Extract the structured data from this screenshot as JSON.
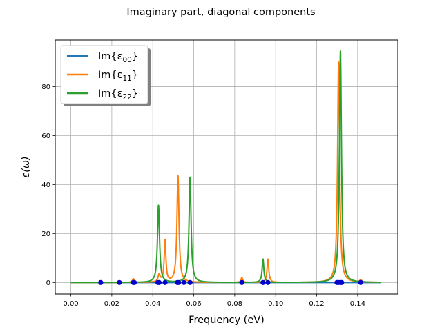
{
  "chart_data": {
    "type": "line",
    "title": "Imaginary part, diagonal components",
    "xlabel": "Frequency (eV)",
    "ylabel": "ε(ω)",
    "xlim": [
      -0.0076,
      0.1596
    ],
    "ylim": [
      -4.7,
      99
    ],
    "grid": true,
    "legend_position": "top-left",
    "x_ticks": [
      {
        "value": 0.0,
        "label": "0.00"
      },
      {
        "value": 0.02,
        "label": "0.02"
      },
      {
        "value": 0.04,
        "label": "0.04"
      },
      {
        "value": 0.06,
        "label": "0.06"
      },
      {
        "value": 0.08,
        "label": "0.08"
      },
      {
        "value": 0.1,
        "label": "0.10"
      },
      {
        "value": 0.12,
        "label": "0.12"
      },
      {
        "value": 0.14,
        "label": "0.14"
      }
    ],
    "y_ticks": [
      {
        "value": 0,
        "label": "0"
      },
      {
        "value": 20,
        "label": "20"
      },
      {
        "value": 40,
        "label": "40"
      },
      {
        "value": 60,
        "label": "60"
      },
      {
        "value": 80,
        "label": "80"
      }
    ],
    "x_range": [
      0,
      0.1512
    ],
    "series": [
      {
        "name": "Im{ε00}",
        "main": "Im{ε",
        "sub": "00",
        "close": "}",
        "color": "#1f77b4",
        "peaks": [
          {
            "x": 0.0431,
            "amp": 0.0,
            "w": 0.0006
          },
          {
            "x": 0.0523,
            "amp": 0.0,
            "w": 0.0006
          }
        ]
      },
      {
        "name": "Im{ε11}",
        "main": "Im{ε",
        "sub": "11",
        "close": "}",
        "color": "#ff7f0e",
        "peaks": [
          {
            "x": 0.0305,
            "amp": 1.5,
            "w": 0.0005
          },
          {
            "x": 0.0431,
            "amp": 3.0,
            "w": 0.0006
          },
          {
            "x": 0.046,
            "amp": 17,
            "w": 0.0005
          },
          {
            "x": 0.0523,
            "amp": 43.5,
            "w": 0.0006
          },
          {
            "x": 0.0835,
            "amp": 2.0,
            "w": 0.0005
          },
          {
            "x": 0.0962,
            "amp": 9.5,
            "w": 0.0005
          },
          {
            "x": 0.1307,
            "amp": 90,
            "w": 0.0006
          },
          {
            "x": 0.1415,
            "amp": 1.0,
            "w": 0.0005
          }
        ]
      },
      {
        "name": "Im{ε22}",
        "main": "Im{ε",
        "sub": "22",
        "close": "}",
        "color": "#2ca02c",
        "peaks": [
          {
            "x": 0.0428,
            "amp": 31.5,
            "w": 0.0006
          },
          {
            "x": 0.0582,
            "amp": 43,
            "w": 0.0006
          },
          {
            "x": 0.0938,
            "amp": 9.5,
            "w": 0.0005
          },
          {
            "x": 0.1316,
            "amp": 94.5,
            "w": 0.0006
          }
        ]
      }
    ],
    "markers": {
      "color": "#0000cc",
      "x": [
        0.0146,
        0.0237,
        0.0305,
        0.031,
        0.0425,
        0.0431,
        0.046,
        0.052,
        0.0526,
        0.0552,
        0.0582,
        0.0835,
        0.0938,
        0.0962,
        0.1299,
        0.1307,
        0.1316,
        0.1322,
        0.1415
      ],
      "y": 0
    }
  }
}
